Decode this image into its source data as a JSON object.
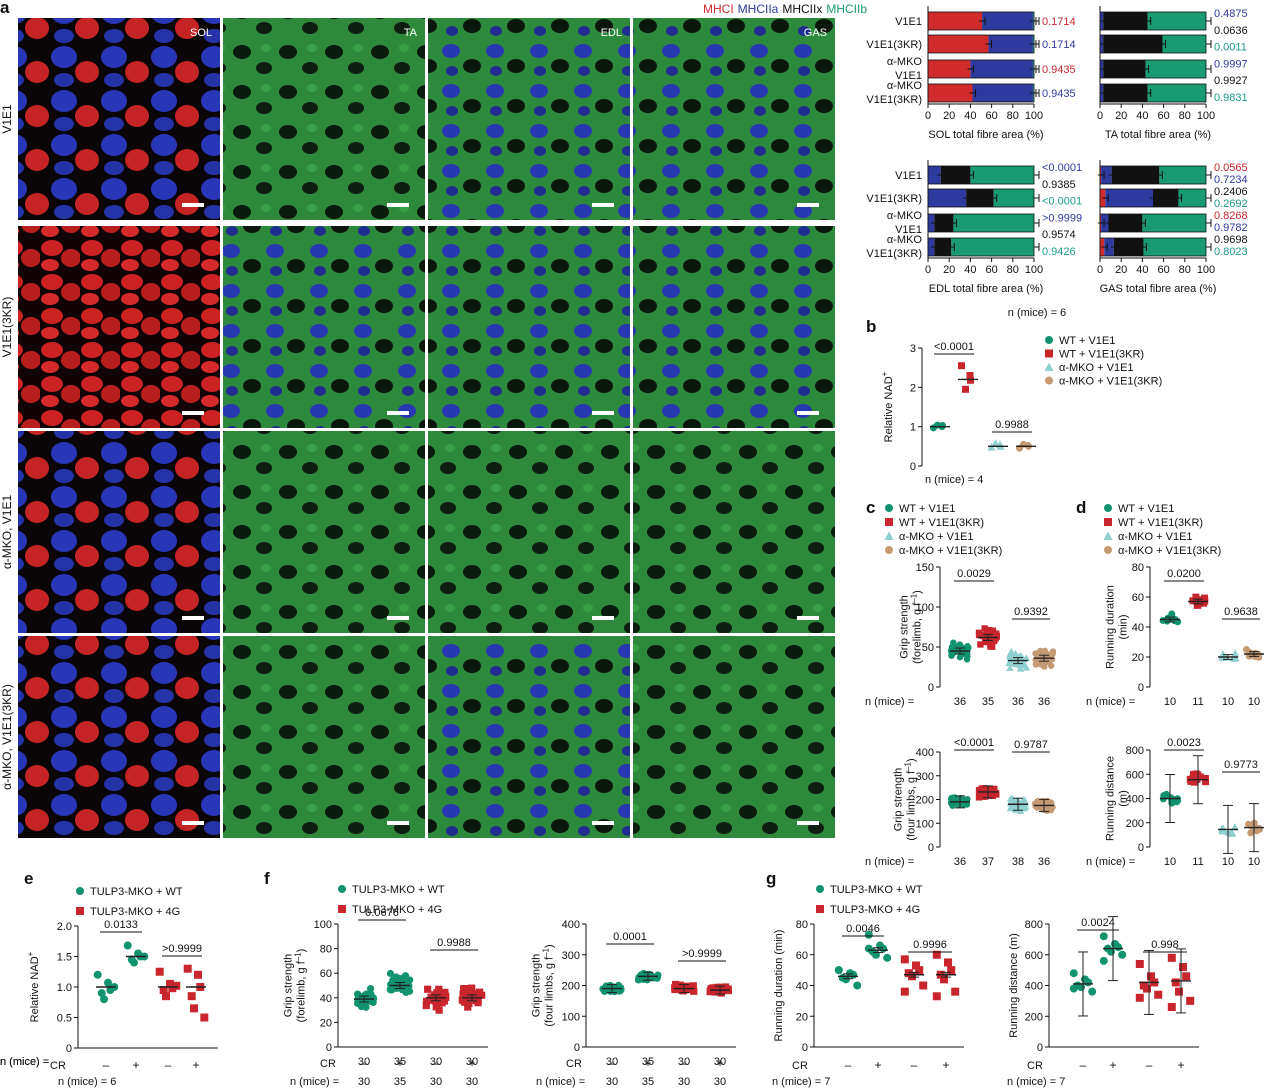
{
  "panel_letters": [
    "a",
    "b",
    "c",
    "d",
    "e",
    "f",
    "g"
  ],
  "colors": {
    "wt_v1e1": "#12936f",
    "wt_v1e1_3kr": "#c8262c",
    "amko_v1e1": "#8fcfd0",
    "amko_v1e1_3kr": "#c59a73",
    "mhci": "#d12b2b",
    "mhciia": "#2e3a9e",
    "mhciix": "#111111",
    "mhciib": "#1a9a72",
    "p_teal": "#1a9a8a",
    "p_red": "#c8262c",
    "p_navy": "#2e3a9e"
  },
  "panel_a": {
    "legend": [
      "MHCI",
      "MHCIIa",
      "MHCIIx",
      "MHCIIb"
    ],
    "columns": [
      "SOL",
      "TA",
      "EDL",
      "GAS"
    ],
    "rows": [
      "V1E1",
      "V1E1(3KR)",
      "α-MKO, V1E1",
      "α-MKO, V1E1(3KR)"
    ],
    "row_labels_bar": [
      [
        "V1E1"
      ],
      [
        "V1E1(3KR)"
      ],
      [
        "α-MKO",
        "V1E1"
      ],
      [
        "α-MKO",
        "V1E1(3KR)"
      ]
    ],
    "n_label": "n (mice) = 6",
    "chart_data": [
      {
        "type": "bar",
        "xlabel": "SOL total fibre area (%)",
        "xlim": [
          0,
          100
        ],
        "ticks": [
          "0",
          "20",
          "40",
          "60",
          "80",
          "100"
        ],
        "segments": [
          [
            51,
            48,
            0,
            1
          ],
          [
            57,
            42,
            0,
            1
          ],
          [
            40,
            59,
            0,
            1
          ],
          [
            42,
            57,
            0,
            1
          ]
        ],
        "pvals": [
          {
            "text": "0.1714",
            "color": "p_red"
          },
          {
            "text": "0.1714",
            "color": "p_navy"
          },
          {
            "text": "0.9435",
            "color": "p_red"
          },
          {
            "text": "0.9435",
            "color": "p_navy"
          }
        ]
      },
      {
        "type": "bar",
        "xlabel": "TA total fibre area (%)",
        "xlim": [
          0,
          100
        ],
        "ticks": [
          "0",
          "20",
          "40",
          "60",
          "80",
          "100"
        ],
        "segments": [
          [
            0,
            3,
            42,
            55
          ],
          [
            0,
            3,
            56,
            41
          ],
          [
            0,
            3,
            40,
            57
          ],
          [
            0,
            3,
            42,
            55
          ]
        ],
        "pvals": [
          {
            "text": "0.4875",
            "color": "p_navy"
          },
          {
            "text": "0.0636",
            "color": "mhciix"
          },
          {
            "text": "0.0011",
            "color": "p_teal"
          },
          {
            "text": "0.9997",
            "color": "p_navy"
          },
          {
            "text": "0.9927",
            "color": "mhciix"
          },
          {
            "text": "0.9831",
            "color": "p_teal"
          }
        ]
      },
      {
        "type": "bar",
        "xlabel": "EDL total fibre area (%)",
        "xlim": [
          0,
          100
        ],
        "ticks": [
          "0",
          "20",
          "40",
          "60",
          "80",
          "100"
        ],
        "segments": [
          [
            0,
            12,
            28,
            60
          ],
          [
            0,
            36,
            26,
            38
          ],
          [
            0,
            6,
            18,
            76
          ],
          [
            0,
            6,
            16,
            78
          ]
        ],
        "pvals": [
          {
            "text": "<0.0001",
            "color": "p_navy"
          },
          {
            "text": "0.9385",
            "color": "mhciix"
          },
          {
            "text": "<0.0001",
            "color": "p_teal"
          },
          {
            "text": ">0.9999",
            "color": "p_navy"
          },
          {
            "text": "0.9574",
            "color": "mhciix"
          },
          {
            "text": "0.9426",
            "color": "p_teal"
          }
        ]
      },
      {
        "type": "bar",
        "xlabel": "GAS total fibre area (%)",
        "xlim": [
          0,
          100
        ],
        "ticks": [
          "0",
          "20",
          "40",
          "60",
          "80",
          "100"
        ],
        "segments": [
          [
            1,
            10,
            45,
            44
          ],
          [
            5,
            45,
            24,
            26
          ],
          [
            1,
            7,
            32,
            60
          ],
          [
            4,
            9,
            28,
            59
          ]
        ],
        "pvals": [
          {
            "text": "0.0565",
            "color": "p_red"
          },
          {
            "text": "0.7234",
            "color": "p_navy"
          },
          {
            "text": "0.2406",
            "color": "mhciix"
          },
          {
            "text": "0.2692",
            "color": "p_teal"
          },
          {
            "text": "0.8268",
            "color": "p_red"
          },
          {
            "text": "0.9782",
            "color": "p_navy"
          },
          {
            "text": "0.9698",
            "color": "mhciix"
          },
          {
            "text": "0.8023",
            "color": "p_teal"
          }
        ]
      }
    ]
  },
  "legend_bcd": [
    "WT + V1E1",
    "WT + V1E1(3KR)",
    "α-MKO + V1E1",
    "α-MKO + V1E1(3KR)"
  ],
  "panel_b": {
    "n_label": "n (mice) = 4",
    "chart_data": {
      "type": "scatter",
      "ylabel": "Relative NAD",
      "ylabel_sup": "+",
      "ylim": [
        0,
        3
      ],
      "ticks": [
        "0",
        "1",
        "2",
        "3"
      ],
      "means": [
        1.0,
        2.2,
        0.5,
        0.5
      ],
      "points": [
        [
          0.97,
          1.0,
          1.03,
          1.04
        ],
        [
          2.55,
          2.3,
          2.18,
          1.95
        ],
        [
          0.48,
          0.55,
          0.5,
          0.58
        ],
        [
          0.45,
          0.52,
          0.5,
          0.55
        ]
      ],
      "comparisons": [
        {
          "text": "<0.0001",
          "from": 0,
          "to": 1
        },
        {
          "text": "0.9988",
          "from": 2,
          "to": 3
        }
      ]
    }
  },
  "panel_c": {
    "chart_data": [
      {
        "type": "scatter",
        "ylabel": [
          "Grip strength",
          "(forelimb, g f",
          ")"
        ],
        "ylim": [
          0,
          150
        ],
        "ticks": [
          "0",
          "50",
          "100",
          "150"
        ],
        "means": [
          45,
          62,
          33,
          36
        ],
        "comparisons": [
          {
            "text": "0.0029",
            "from": 0,
            "to": 1
          },
          {
            "text": "0.9392",
            "from": 2,
            "to": 3
          }
        ],
        "n_label": "n (mice) = ",
        "n": [
          "36",
          "35",
          "36",
          "36"
        ]
      },
      {
        "type": "scatter",
        "ylabel": [
          "Grip strength",
          "(four limbs, g f",
          ")"
        ],
        "ylim": [
          0,
          400
        ],
        "ticks": [
          "0",
          "100",
          "200",
          "300",
          "400"
        ],
        "means": [
          190,
          232,
          180,
          175
        ],
        "comparisons": [
          {
            "text": "<0.0001",
            "from": 0,
            "to": 1
          },
          {
            "text": "0.9787",
            "from": 2,
            "to": 3
          }
        ],
        "n_label": "n (mice) = ",
        "n": [
          "36",
          "37",
          "38",
          "36"
        ]
      }
    ]
  },
  "panel_d": {
    "chart_data": [
      {
        "type": "scatter",
        "ylabel": [
          "Running duration",
          "(min)"
        ],
        "ylim": [
          0,
          80
        ],
        "ticks": [
          "0",
          "20",
          "40",
          "60",
          "80"
        ],
        "means": [
          45,
          57,
          20,
          22
        ],
        "comparisons": [
          {
            "text": "0.0200",
            "from": 0,
            "to": 1
          },
          {
            "text": "0.9638",
            "from": 2,
            "to": 3
          }
        ],
        "n_label": "n (mice) = ",
        "n": [
          "10",
          "11",
          "10",
          "10"
        ]
      },
      {
        "type": "scatter",
        "ylabel": [
          "Running distance",
          "(m)"
        ],
        "ylim": [
          0,
          800
        ],
        "ticks": [
          "0",
          "200",
          "400",
          "600",
          "800"
        ],
        "means": [
          400,
          555,
          145,
          160
        ],
        "comparisons": [
          {
            "text": "0.0023",
            "from": 0,
            "to": 1
          },
          {
            "text": "0.9773",
            "from": 2,
            "to": 3
          }
        ],
        "n_label": "n (mice) = ",
        "n": [
          "10",
          "11",
          "10",
          "10"
        ]
      }
    ]
  },
  "legend_efg": [
    "TULP3-MKO + WT",
    "TULP3-MKO + 4G"
  ],
  "cr_label": "CR",
  "cr_ticks": [
    "–",
    "+",
    "–",
    "+"
  ],
  "panel_e": {
    "n_label": "n (mice) = 6",
    "chart_data": {
      "type": "scatter",
      "ylabel": "Relative NAD",
      "ylabel_sup": "+",
      "ylim": [
        0,
        2.0
      ],
      "ticks": [
        "0",
        "0.5",
        "1.0",
        "1.5",
        "2.0"
      ],
      "means": [
        1.0,
        1.5,
        1.0,
        1.0
      ],
      "points": [
        [
          1.2,
          1.07,
          0.95,
          0.9,
          0.8,
          1.0
        ],
        [
          1.68,
          1.55,
          1.5,
          1.45,
          1.4,
          1.5
        ],
        [
          1.25,
          1.05,
          0.98,
          0.95,
          0.85,
          1.02
        ],
        [
          1.3,
          1.2,
          1.0,
          0.85,
          0.65,
          0.5
        ]
      ],
      "comparisons": [
        {
          "text": "0.0133",
          "from": 0,
          "to": 1
        },
        {
          "text": ">0.9999",
          "from": 2,
          "to": 3
        }
      ]
    }
  },
  "panel_f": {
    "chart_data": [
      {
        "type": "scatter",
        "ylabel": [
          "Grip strength",
          "(forelimb, g f",
          ")"
        ],
        "ylim": [
          0,
          100
        ],
        "ticks": [
          "0",
          "20",
          "40",
          "60",
          "80",
          "100"
        ],
        "means": [
          39,
          50,
          40,
          40
        ],
        "comparisons": [
          {
            "text": "0.0676",
            "from": 0,
            "to": 1
          },
          {
            "text": "0.9988",
            "from": 2,
            "to": 3
          }
        ],
        "n_label": "n (mice) = ",
        "n": [
          "30",
          "35",
          "30",
          "30"
        ]
      },
      {
        "type": "scatter",
        "ylabel": [
          "Grip strength",
          "(four limbs, g f",
          ")"
        ],
        "ylim": [
          0,
          400
        ],
        "ticks": [
          "0",
          "100",
          "200",
          "300",
          "400"
        ],
        "means": [
          190,
          230,
          190,
          185
        ],
        "comparisons": [
          {
            "text": "0.0001",
            "from": 0,
            "to": 1
          },
          {
            "text": ">0.9999",
            "from": 2,
            "to": 3
          }
        ],
        "n_label": "n (mice) = ",
        "n": [
          "30",
          "35",
          "30",
          "30"
        ]
      }
    ]
  },
  "panel_g": {
    "n_label": "n (mice) = 7",
    "chart_data": [
      {
        "type": "scatter",
        "ylabel": [
          "Running duration (min)"
        ],
        "ylim": [
          0,
          80
        ],
        "ticks": [
          "0",
          "20",
          "40",
          "60",
          "80"
        ],
        "means": [
          46,
          63,
          47,
          47
        ],
        "points": [
          [
            50,
            48,
            47,
            45,
            44,
            40,
            50
          ],
          [
            73,
            66,
            64,
            62,
            60,
            58,
            64
          ],
          [
            57,
            53,
            50,
            48,
            46,
            40,
            36
          ],
          [
            60,
            55,
            50,
            47,
            44,
            36,
            33
          ]
        ],
        "comparisons": [
          {
            "text": "0.0046",
            "from": 0,
            "to": 1
          },
          {
            "text": "0.9996",
            "from": 2,
            "to": 3
          }
        ]
      },
      {
        "type": "scatter",
        "ylabel": [
          "Running distance (m)"
        ],
        "ylim": [
          0,
          800
        ],
        "ticks": [
          "0",
          "200",
          "400",
          "600",
          "800"
        ],
        "means": [
          410,
          640,
          420,
          430
        ],
        "points": [
          [
            480,
            440,
            420,
            400,
            390,
            360,
            380
          ],
          [
            720,
            670,
            650,
            640,
            620,
            600,
            560
          ],
          [
            540,
            460,
            420,
            400,
            380,
            340,
            320
          ],
          [
            580,
            520,
            460,
            420,
            360,
            300,
            260
          ]
        ],
        "comparisons": [
          {
            "text": "0.0024",
            "from": 0,
            "to": 1
          },
          {
            "text": "0.998",
            "from": 2,
            "to": 3
          }
        ]
      }
    ]
  }
}
